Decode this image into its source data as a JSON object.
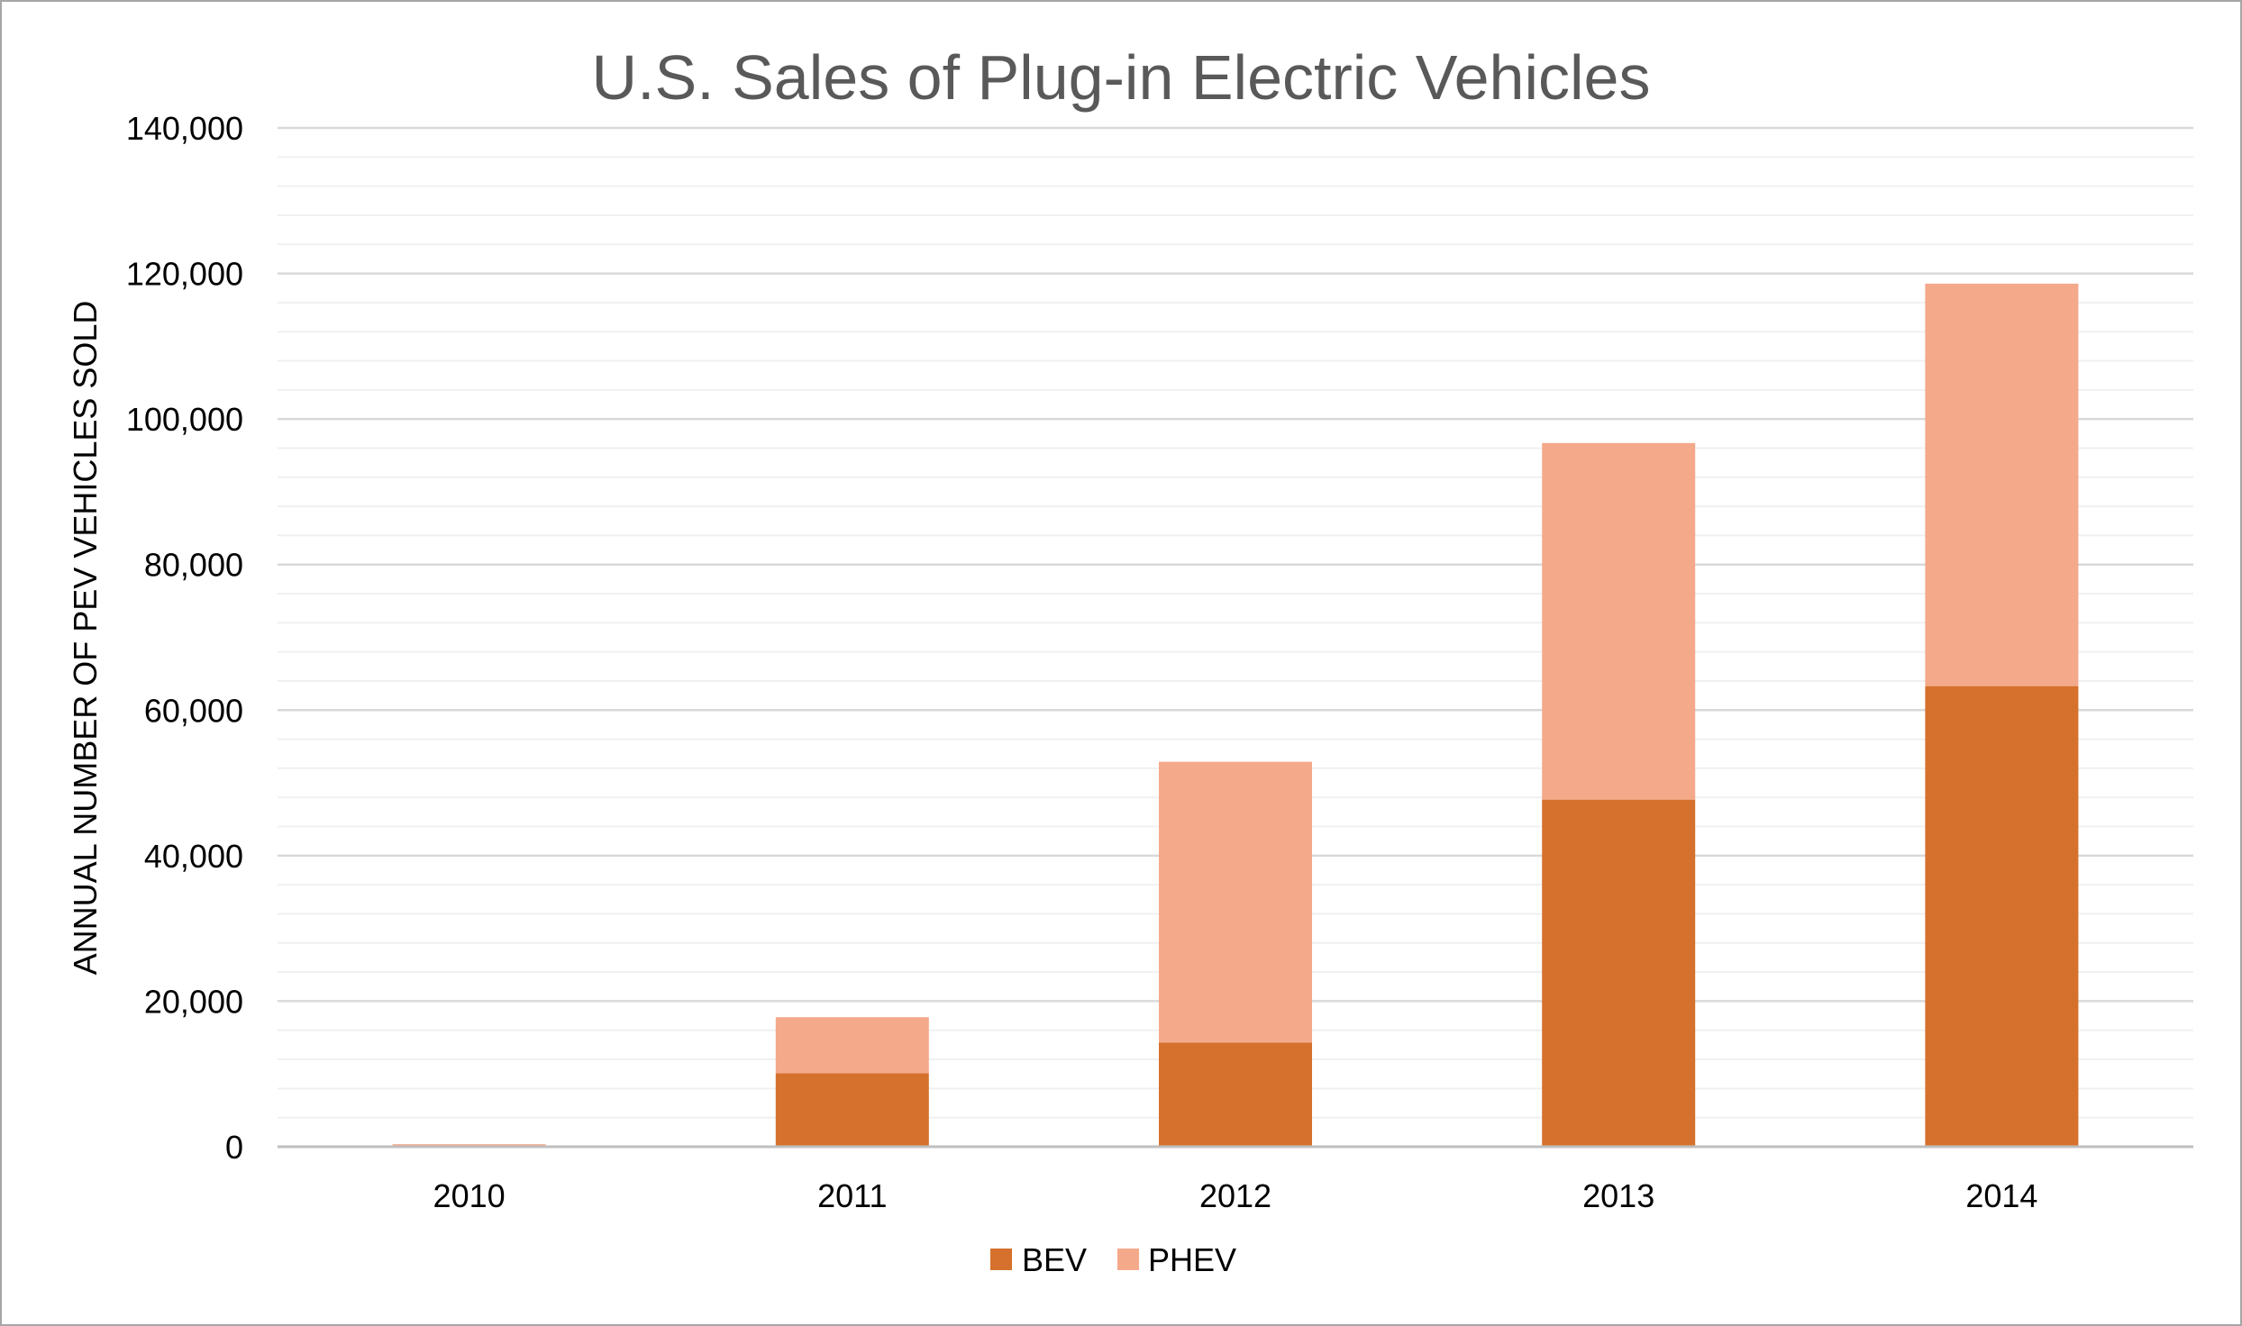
{
  "chart_data": {
    "type": "bar",
    "stacked": true,
    "title": "U.S. Sales of Plug-in Electric Vehicles",
    "xlabel": "",
    "ylabel": "ANNUAL NUMBER OF PEV VEHICLES SOLD",
    "categories": [
      "2010",
      "2011",
      "2012",
      "2013",
      "2014"
    ],
    "series": [
      {
        "name": "BEV",
        "color": "#d5712c",
        "values": [
          20,
          10100,
          14300,
          47700,
          63300
        ]
      },
      {
        "name": "PHEV",
        "color": "#f4a98b",
        "values": [
          330,
          7700,
          38600,
          49000,
          55300
        ]
      }
    ],
    "ylim": [
      0,
      140000
    ],
    "yticks": [
      0,
      20000,
      40000,
      60000,
      80000,
      100000,
      120000,
      140000
    ],
    "ytick_labels": [
      "0",
      "20,000",
      "40,000",
      "60,000",
      "80,000",
      "100,000",
      "120,000",
      "140,000"
    ],
    "minor_grid_step": 4000,
    "grid": true,
    "legend_position": "bottom"
  }
}
